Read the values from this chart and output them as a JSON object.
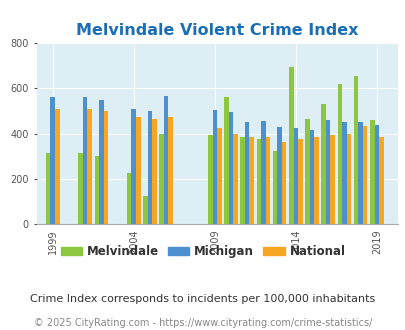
{
  "title": "Melvindale Violent Crime Index",
  "subtitle": "Crime Index corresponds to incidents per 100,000 inhabitants",
  "footer": "© 2025 CityRating.com - https://www.cityrating.com/crime-statistics/",
  "background_color": "#deeef5",
  "ylim": [
    0,
    800
  ],
  "yticks": [
    0,
    200,
    400,
    600,
    800
  ],
  "years": [
    1999,
    2001,
    2002,
    2004,
    2005,
    2006,
    2009,
    2010,
    2011,
    2012,
    2013,
    2014,
    2015,
    2016,
    2017,
    2018,
    2019
  ],
  "xtick_years": [
    1999,
    2004,
    2009,
    2014,
    2019
  ],
  "melvindale": [
    315,
    315,
    300,
    225,
    125,
    400,
    395,
    560,
    385,
    375,
    325,
    695,
    465,
    530,
    620,
    655,
    460
  ],
  "michigan": [
    560,
    560,
    550,
    510,
    500,
    565,
    505,
    495,
    450,
    455,
    430,
    425,
    415,
    460,
    450,
    450,
    440
  ],
  "national": [
    510,
    510,
    500,
    475,
    465,
    475,
    425,
    400,
    385,
    385,
    365,
    375,
    385,
    395,
    400,
    435,
    385
  ],
  "color_melvindale": "#8dc63f",
  "color_michigan": "#4d90d0",
  "color_national": "#f5a623",
  "title_color": "#1a6eb5",
  "title_fontsize": 11.5,
  "tick_fontsize": 7,
  "legend_fontsize": 8.5,
  "subtitle_fontsize": 8,
  "footer_fontsize": 7
}
